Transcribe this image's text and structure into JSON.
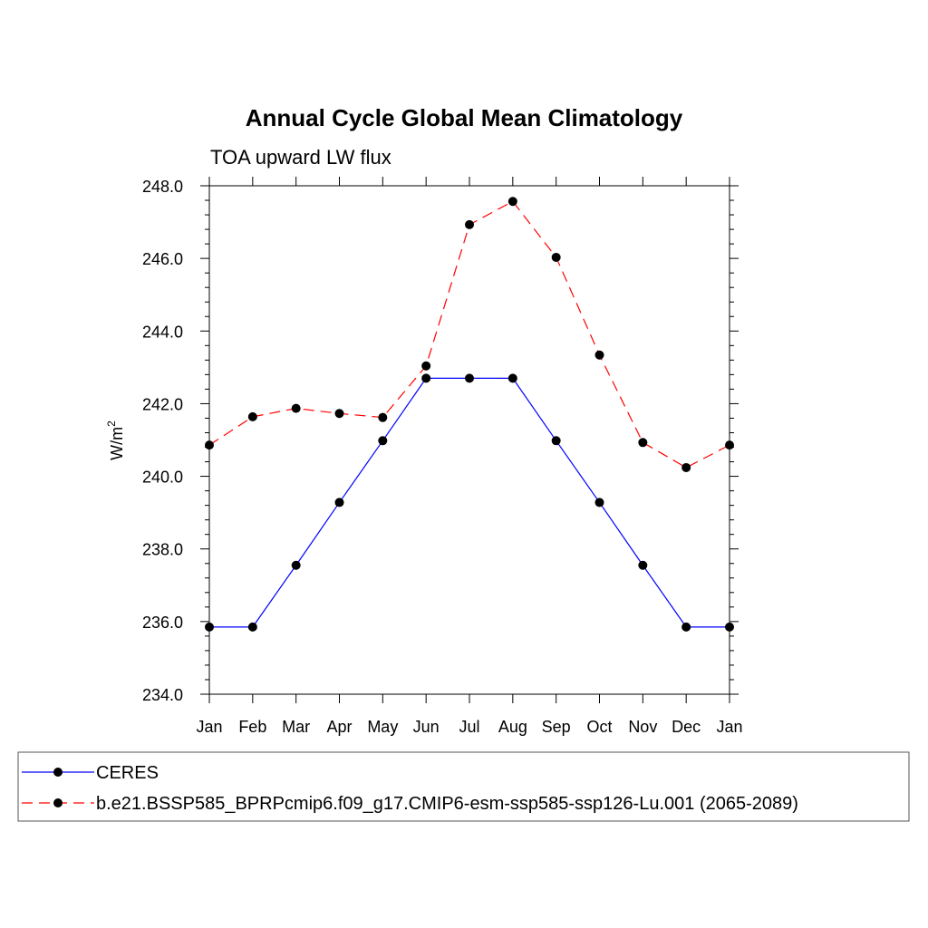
{
  "chart_data": {
    "type": "line",
    "title": "Annual Cycle Global Mean Climatology",
    "subtitle": "TOA upward LW flux",
    "ylabel": "W/m",
    "ylabel_sup": "2",
    "xlabel": "",
    "categories": [
      "Jan",
      "Feb",
      "Mar",
      "Apr",
      "May",
      "Jun",
      "Jul",
      "Aug",
      "Sep",
      "Oct",
      "Nov",
      "Dec",
      "Jan"
    ],
    "ylim": [
      234.0,
      248.0
    ],
    "yticks": [
      234.0,
      236.0,
      238.0,
      240.0,
      242.0,
      244.0,
      246.0,
      248.0
    ],
    "ytick_labels": [
      "234.0",
      "236.0",
      "238.0",
      "240.0",
      "242.0",
      "244.0",
      "246.0",
      "248.0"
    ],
    "grid": false,
    "legend_position": "bottom",
    "series": [
      {
        "name": "CERES",
        "color": "#0000ff",
        "dash": "solid",
        "values": [
          235.85,
          235.85,
          237.55,
          239.28,
          240.98,
          242.7,
          242.7,
          242.7,
          240.98,
          239.28,
          237.55,
          235.85,
          235.85
        ]
      },
      {
        "name": "b.e21.BSSP585_BPRPcmip6.f09_g17.CMIP6-esm-ssp585-ssp126-Lu.001 (2065-2089)",
        "color": "#ff0000",
        "dash": "dashed",
        "values": [
          240.86,
          241.64,
          241.87,
          241.73,
          241.62,
          243.04,
          246.93,
          247.57,
          246.03,
          243.34,
          240.93,
          240.24,
          240.86
        ]
      }
    ],
    "marker_color": "#000000"
  }
}
